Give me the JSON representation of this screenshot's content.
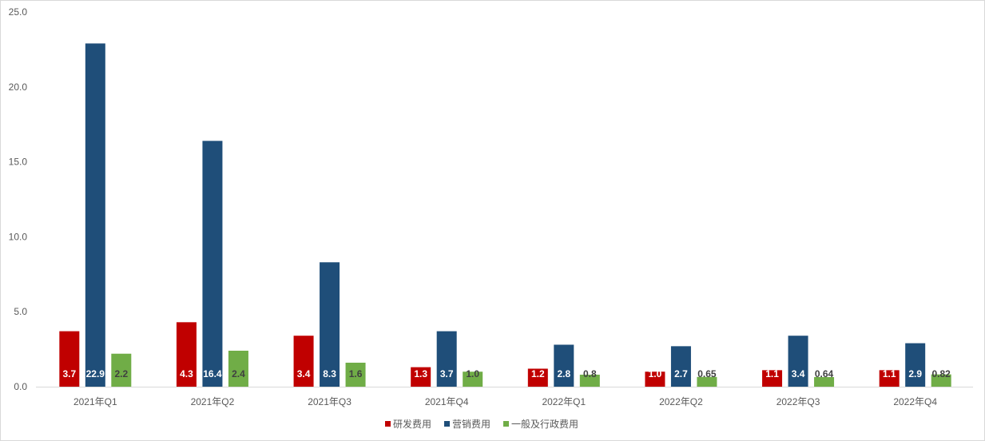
{
  "chart_data": {
    "type": "bar",
    "categories": [
      "2021年Q1",
      "2021年Q2",
      "2021年Q3",
      "2021年Q4",
      "2022年Q1",
      "2022年Q2",
      "2022年Q3",
      "2022年Q4"
    ],
    "series": [
      {
        "name": "研发费用",
        "color": "#c00000",
        "label_color": "#ffffff",
        "values": [
          3.7,
          4.3,
          3.4,
          1.3,
          1.2,
          1.0,
          1.1,
          1.1
        ],
        "labels": [
          "3.7",
          "4.3",
          "3.4",
          "1.3",
          "1.2",
          "1.0",
          "1.1",
          "1.1"
        ]
      },
      {
        "name": "营销费用",
        "color": "#1f4e79",
        "label_color": "#ffffff",
        "values": [
          22.9,
          16.4,
          8.3,
          3.7,
          2.8,
          2.7,
          3.4,
          2.9
        ],
        "labels": [
          "22.9",
          "16.4",
          "8.3",
          "3.7",
          "2.8",
          "2.7",
          "3.4",
          "2.9"
        ]
      },
      {
        "name": "一般及行政费用",
        "color": "#70ad47",
        "label_color": "#404040",
        "values": [
          2.2,
          2.4,
          1.6,
          1.0,
          0.8,
          0.65,
          0.64,
          0.82
        ],
        "labels": [
          "2.2",
          "2.4",
          "1.6",
          "1.0",
          "0.8",
          "0.65",
          "0.64",
          "0.82"
        ]
      }
    ],
    "yticks": [
      "0.0",
      "5.0",
      "10.0",
      "15.0",
      "20.0",
      "25.0"
    ],
    "ylim": [
      0,
      25
    ],
    "grid": false,
    "legend": "bottom"
  }
}
